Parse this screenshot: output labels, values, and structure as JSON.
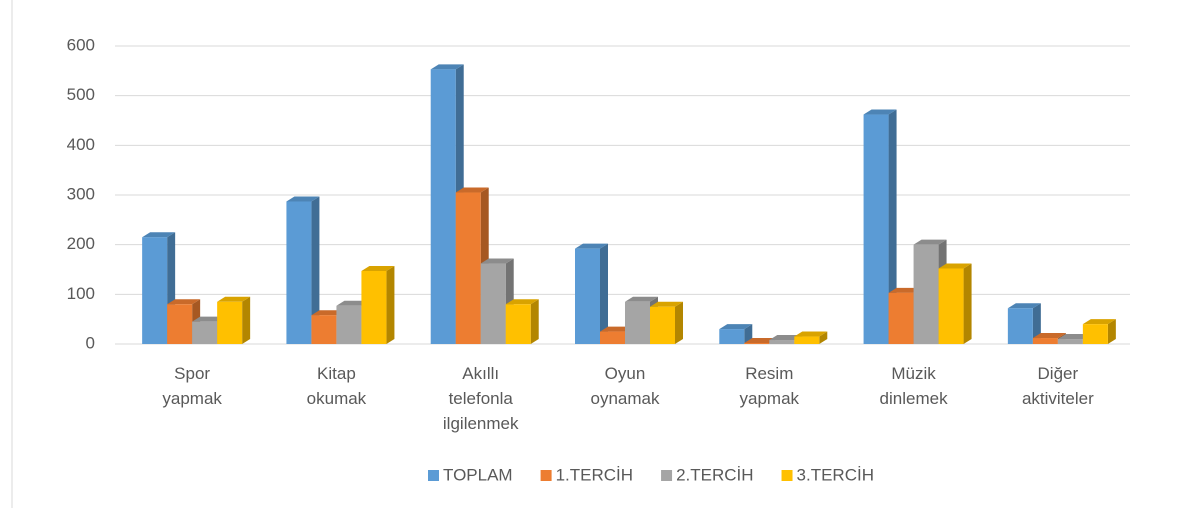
{
  "chart_data": {
    "type": "bar3d",
    "categories": [
      "Spor yapmak",
      "Kitap okumak",
      "Akıllı telefonla ilgilenmek",
      "Oyun oynamak",
      "Resim yapmak",
      "Müzik dinlemek",
      "Diğer aktiviteler"
    ],
    "series": [
      {
        "name": "TOPLAM",
        "color": "#5b9bd5",
        "values": [
          215,
          287,
          553,
          192,
          30,
          462,
          72
        ]
      },
      {
        "name": "1.TERCİH",
        "color": "#ed7d31",
        "values": [
          80,
          58,
          305,
          25,
          2,
          103,
          12
        ]
      },
      {
        "name": "2.TERCİH",
        "color": "#a5a5a5",
        "values": [
          45,
          77,
          162,
          85,
          8,
          200,
          10
        ]
      },
      {
        "name": "3.TERCİH",
        "color": "#ffc000",
        "values": [
          85,
          147,
          80,
          75,
          15,
          152,
          40
        ]
      }
    ],
    "ylim": [
      0,
      600
    ],
    "yticks": [
      0,
      100,
      200,
      300,
      400,
      500,
      600
    ],
    "grid": true,
    "legend": "bottom"
  }
}
